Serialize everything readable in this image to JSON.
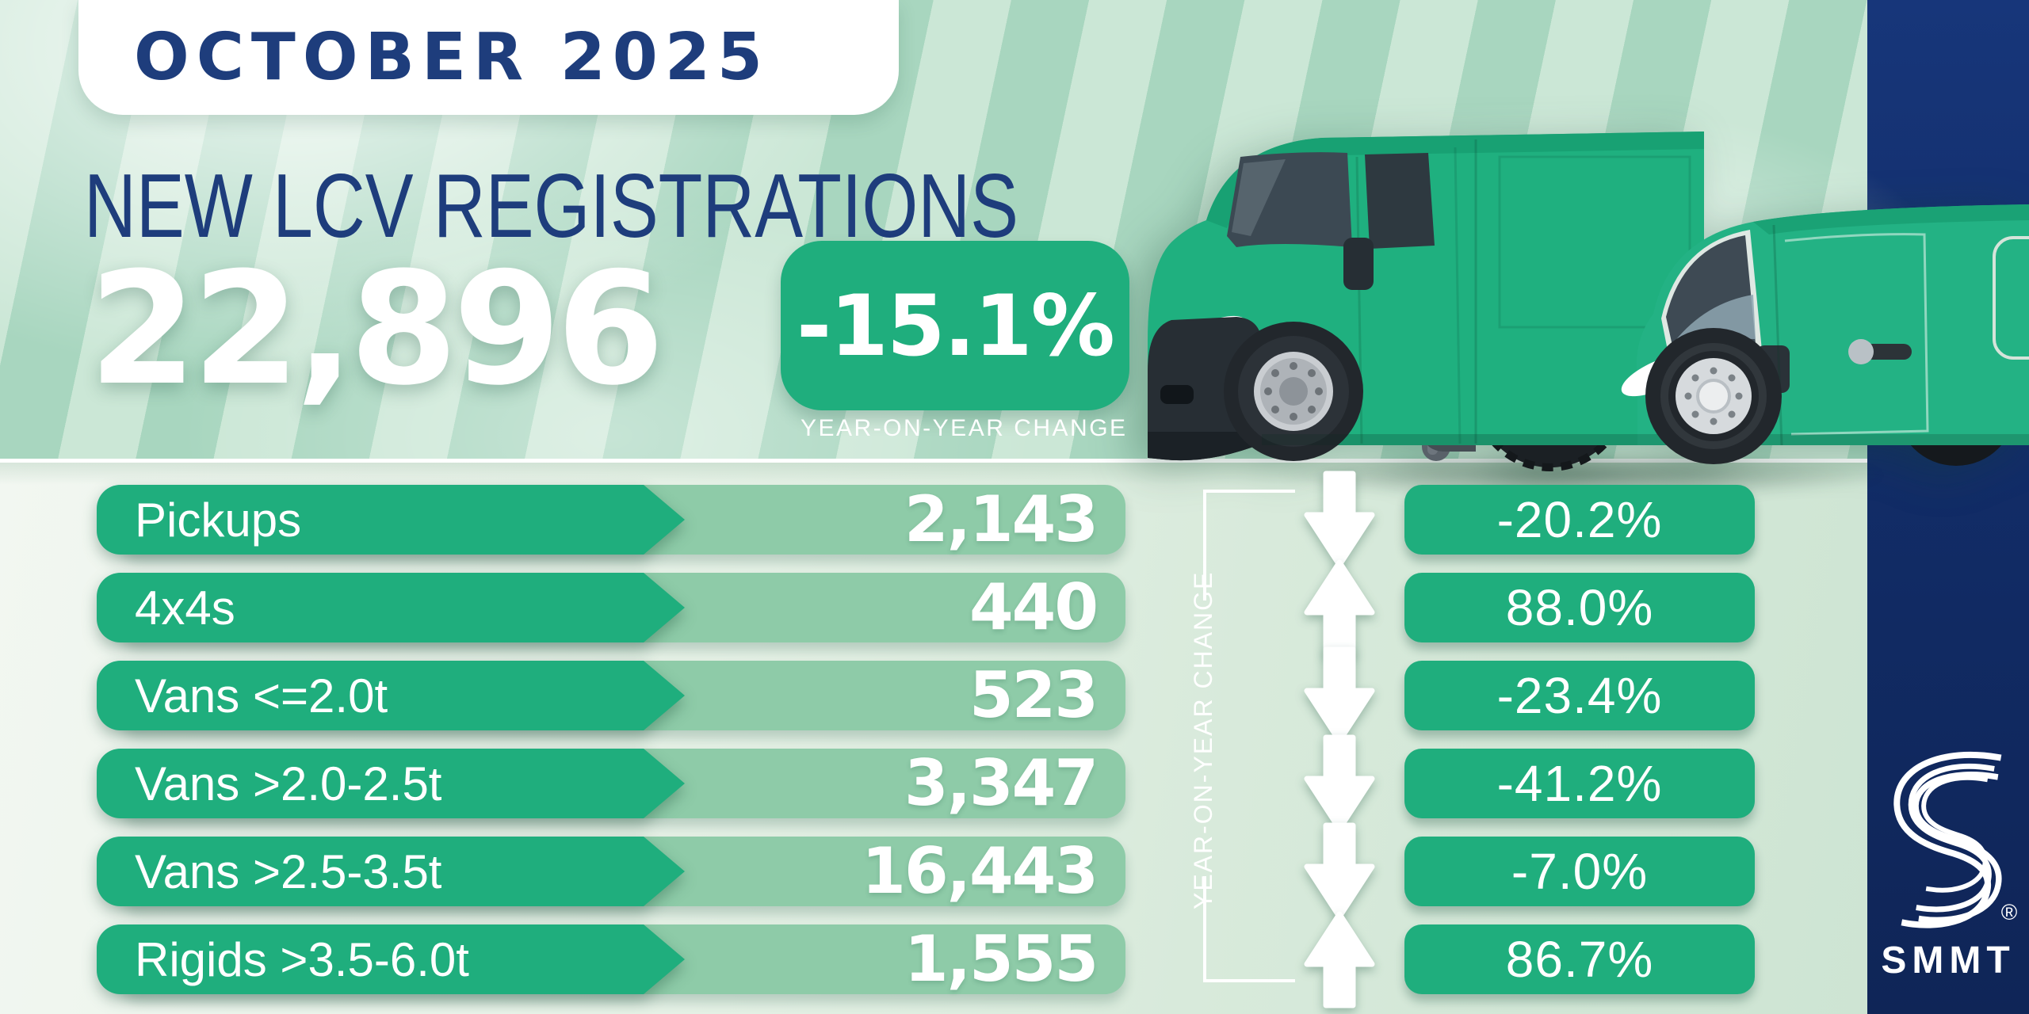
{
  "header": {
    "badge": "OCTOBER 2025",
    "title": "NEW LCV REGISTRATIONS",
    "total": "22,896",
    "yoy_change": "-15.1%",
    "yoy_caption": "YEAR-ON-YEAR CHANGE"
  },
  "table": {
    "axis_label": "YEAR-ON-YEAR CHANGE",
    "rows": [
      {
        "category": "Pickups",
        "value": "2,143",
        "direction": "down",
        "change": "-20.2%"
      },
      {
        "category": "4x4s",
        "value": "440",
        "direction": "up",
        "change": "88.0%"
      },
      {
        "category": "Vans <=2.0t",
        "value": "523",
        "direction": "down",
        "change": "-23.4%"
      },
      {
        "category": "Vans >2.0-2.5t",
        "value": "3,347",
        "direction": "down",
        "change": "-41.2%"
      },
      {
        "category": "Vans >2.5-3.5t",
        "value": "16,443",
        "direction": "down",
        "change": "-7.0%"
      },
      {
        "category": "Rigids >3.5-6.0t",
        "value": "1,555",
        "direction": "up",
        "change": "86.7%"
      }
    ]
  },
  "chart_data": {
    "type": "table",
    "title": "New LCV registrations — October 2025",
    "total_registrations": 22896,
    "total_yoy_change_pct": -15.1,
    "categories": [
      "Pickups",
      "4x4s",
      "Vans <=2.0t",
      "Vans >2.0-2.5t",
      "Vans >2.5-3.5t",
      "Rigids >3.5-6.0t"
    ],
    "registrations": [
      2143,
      440,
      523,
      3347,
      16443,
      1555
    ],
    "yoy_change_pct": [
      -20.2,
      88.0,
      -23.4,
      -41.2,
      -7.0,
      86.7
    ]
  },
  "branding": {
    "logo_text": "SMMT",
    "registered_mark": "®"
  },
  "colors": {
    "green": "#1fae7d",
    "value_band": "#8ecba8",
    "navy_bar": "#122d69",
    "navy_text": "#1e3d7c",
    "stripe_light": "#cbe7d6",
    "stripe_dark": "#a8d6bf"
  }
}
